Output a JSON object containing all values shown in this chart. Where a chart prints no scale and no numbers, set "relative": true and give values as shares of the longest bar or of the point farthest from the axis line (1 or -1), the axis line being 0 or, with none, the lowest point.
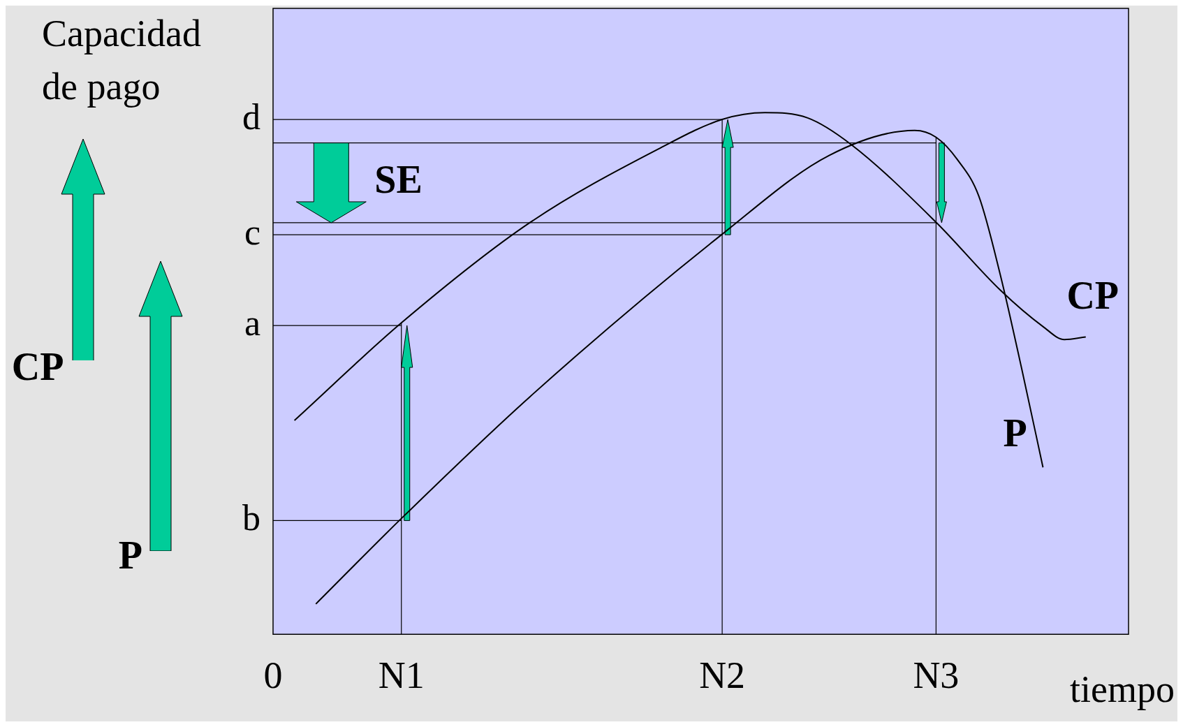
{
  "chart_data": {
    "type": "line",
    "relative": true,
    "ylabel": "Capacidad de pago",
    "xlabel": "tiempo",
    "annotations": [
      "SE"
    ],
    "legend": false,
    "marker": "none",
    "line_style": "solid",
    "categories": [
      "0",
      null,
      null,
      null,
      null,
      null,
      "N1",
      null,
      null,
      null,
      null,
      null,
      null,
      null,
      null,
      null,
      null,
      null,
      null,
      null,
      null,
      "N2",
      null,
      null,
      null,
      null,
      null,
      null,
      null,
      null,
      null,
      "N3",
      null,
      null,
      null,
      null,
      null,
      null,
      null,
      null,
      null
    ],
    "series": [
      {
        "name": "CP",
        "color": "#000000",
        "values": [
          null,
          0.41,
          null,
          null,
          null,
          null,
          0.597,
          null,
          null,
          null,
          null,
          null,
          0.789,
          null,
          null,
          null,
          null,
          null,
          0.93,
          null,
          null,
          0.987,
          null,
          1,
          null,
          0.99,
          null,
          0.94,
          null,
          null,
          null,
          0.79,
          null,
          null,
          0.66,
          null,
          0.59,
          0.565,
          0.57,
          null,
          null
        ]
      },
      {
        "name": "P",
        "color": "#000000",
        "values": [
          null,
          null,
          0.058,
          null,
          null,
          null,
          0.222,
          null,
          null,
          null,
          null,
          null,
          0.455,
          null,
          null,
          null,
          null,
          null,
          null,
          null,
          null,
          0.767,
          null,
          null,
          null,
          null,
          0.918,
          null,
          null,
          null,
          0.966,
          0.953,
          0.91,
          0.84,
          0.69,
          0.51,
          0.32,
          null,
          null,
          null,
          null
        ]
      }
    ],
    "ref_lines": [
      {
        "axis": "y",
        "value": 0.987,
        "label": "d"
      },
      {
        "axis": "y",
        "value": 0.942
      },
      {
        "axis": "y",
        "value": 0.789
      },
      {
        "axis": "y",
        "value": 0.766,
        "label": "c"
      },
      {
        "axis": "y",
        "value": 0.592,
        "label": "a"
      },
      {
        "axis": "y",
        "value": 0.218,
        "label": "b"
      },
      {
        "axis": "x",
        "value": "N1"
      },
      {
        "axis": "x",
        "value": "N2"
      },
      {
        "axis": "x",
        "value": "N3"
      }
    ]
  }
}
